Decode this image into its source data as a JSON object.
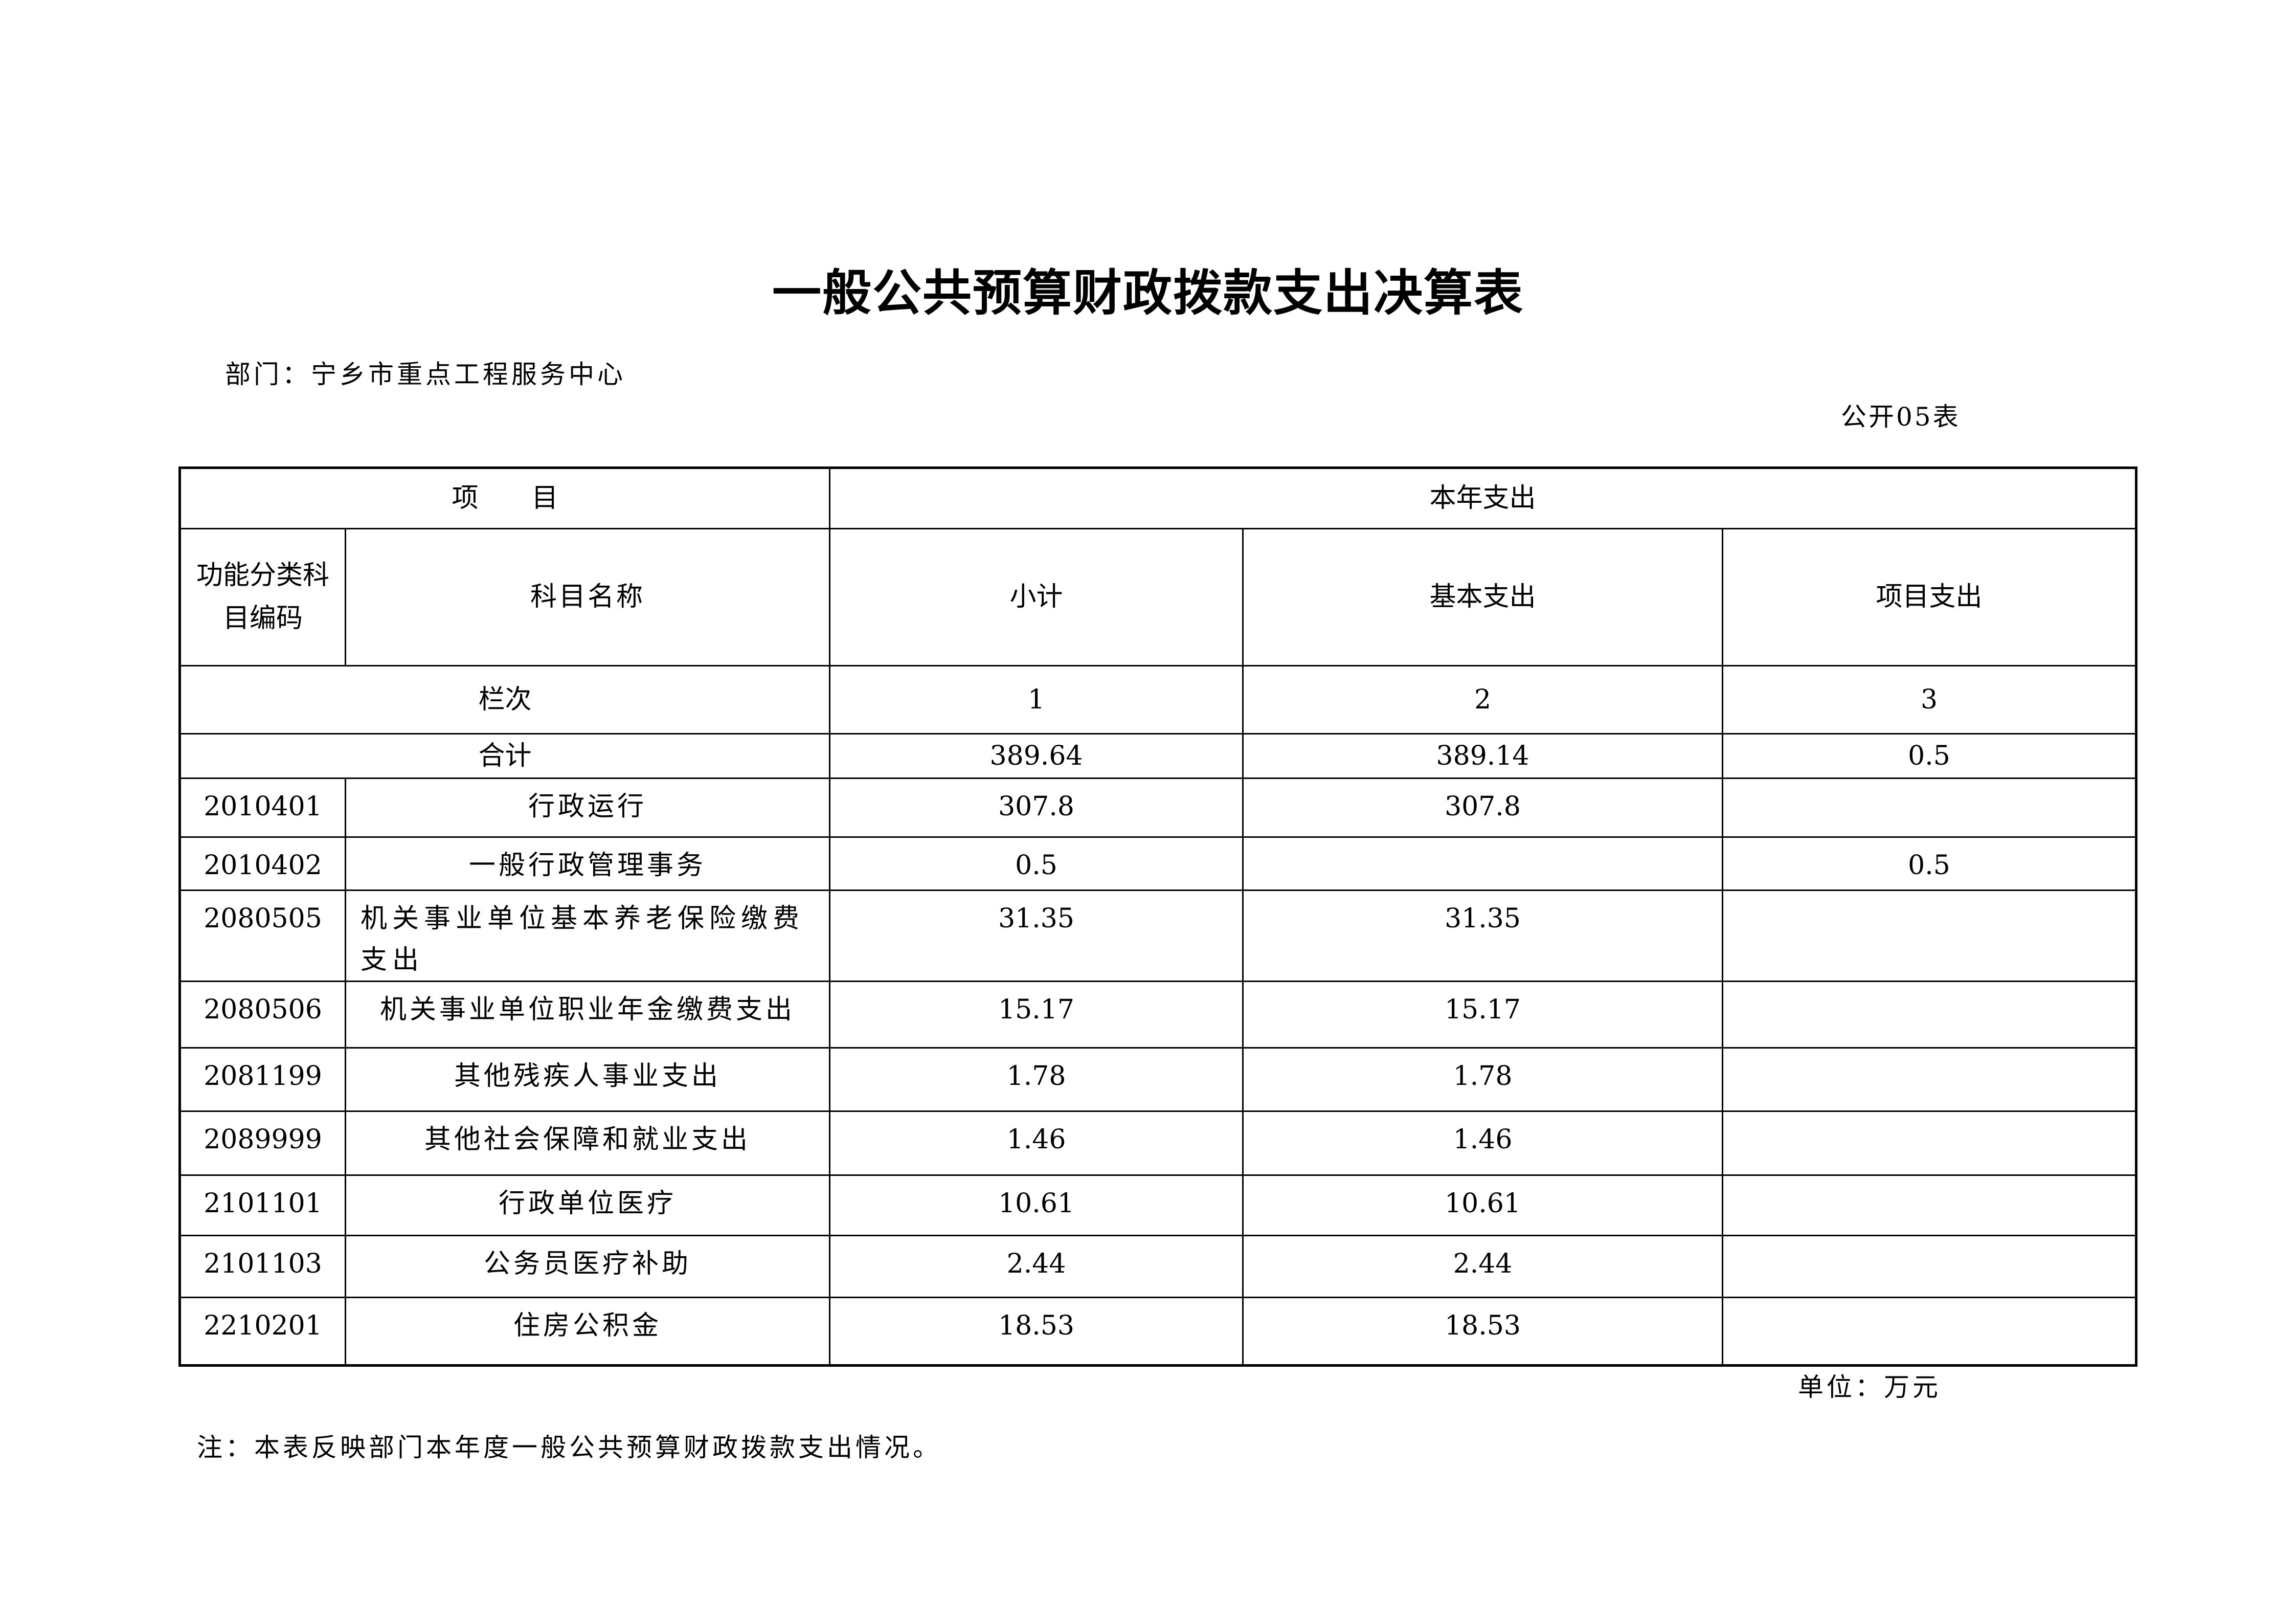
{
  "title": "一般公共预算财政拨款支出决算表",
  "department": "部门：宁乡市重点工程服务中心",
  "form_number": "公开05表",
  "unit": "单位：万元",
  "note": "注：本表反映部门本年度一般公共预算财政拨款支出情况。",
  "header": {
    "item": "项　　目",
    "current_year": "本年支出",
    "code": "功能分类科目编码",
    "name": "科目名称",
    "subtotal": "小计",
    "basic": "基本支出",
    "project": "项目支出",
    "column_label": "栏次",
    "col1": "1",
    "col2": "2",
    "col3": "3"
  },
  "total": {
    "label": "合计",
    "subtotal": "389.64",
    "basic": "389.14",
    "project": "0.5"
  },
  "rows": [
    {
      "code": "2010401",
      "name": "行政运行",
      "subtotal": "307.8",
      "basic": "307.8",
      "project": ""
    },
    {
      "code": "2010402",
      "name": "一般行政管理事务",
      "subtotal": "0.5",
      "basic": "",
      "project": "0.5"
    },
    {
      "code": "2080505",
      "name": "机关事业单位基本养老保险缴费支出",
      "subtotal": "31.35",
      "basic": "31.35",
      "project": ""
    },
    {
      "code": "2080506",
      "name": "机关事业单位职业年金缴费支出",
      "subtotal": "15.17",
      "basic": "15.17",
      "project": ""
    },
    {
      "code": "2081199",
      "name": "其他残疾人事业支出",
      "subtotal": "1.78",
      "basic": "1.78",
      "project": ""
    },
    {
      "code": "2089999",
      "name": "其他社会保障和就业支出",
      "subtotal": "1.46",
      "basic": "1.46",
      "project": ""
    },
    {
      "code": "2101101",
      "name": "行政单位医疗",
      "subtotal": "10.61",
      "basic": "10.61",
      "project": ""
    },
    {
      "code": "2101103",
      "name": "公务员医疗补助",
      "subtotal": "2.44",
      "basic": "2.44",
      "project": ""
    },
    {
      "code": "2210201",
      "name": "住房公积金",
      "subtotal": "18.53",
      "basic": "18.53",
      "project": ""
    }
  ]
}
